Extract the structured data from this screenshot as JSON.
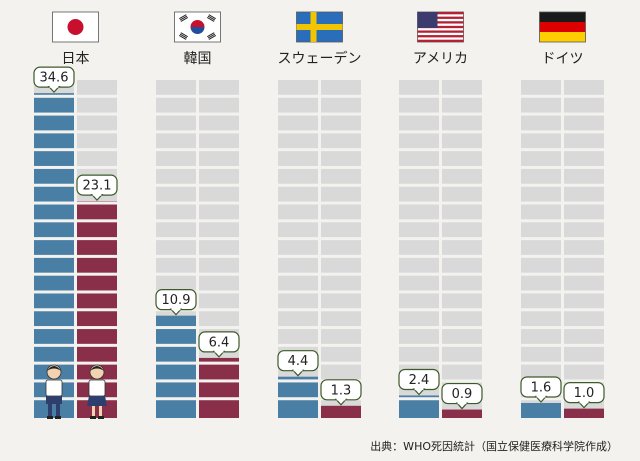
{
  "chart_data": {
    "type": "bar",
    "title": "",
    "xlabel": "",
    "ylabel": "",
    "ylim": [
      0,
      36
    ],
    "grid": false,
    "legend": "none",
    "categories": [
      "日本",
      "韓国",
      "スウェーデン",
      "アメリカ",
      "ドイツ"
    ],
    "flags": [
      "japan-flag",
      "korea-flag",
      "sweden-flag",
      "usa-flag",
      "germany-flag"
    ],
    "series": [
      {
        "color": "#4a7fa5",
        "values": [
          34.6,
          10.9,
          4.4,
          2.4,
          1.6
        ]
      },
      {
        "color": "#8a2f4a",
        "values": [
          23.1,
          6.4,
          1.3,
          0.9,
          1.0
        ]
      }
    ],
    "value_labels": [
      [
        "34.6",
        "23.1"
      ],
      [
        "10.9",
        "6.4"
      ],
      [
        "4.4",
        "1.3"
      ],
      [
        "2.4",
        "0.9"
      ],
      [
        "1.6",
        "1.0"
      ]
    ],
    "source": "出典：WHO死因統計（国立保健医療科学院作成）"
  },
  "colors": {
    "empty_cell": "#d9d9d9",
    "label_border": "#3d5a2a",
    "background": "#f3f2ee"
  },
  "icons": [
    "boy-figure-icon",
    "girl-figure-icon"
  ]
}
